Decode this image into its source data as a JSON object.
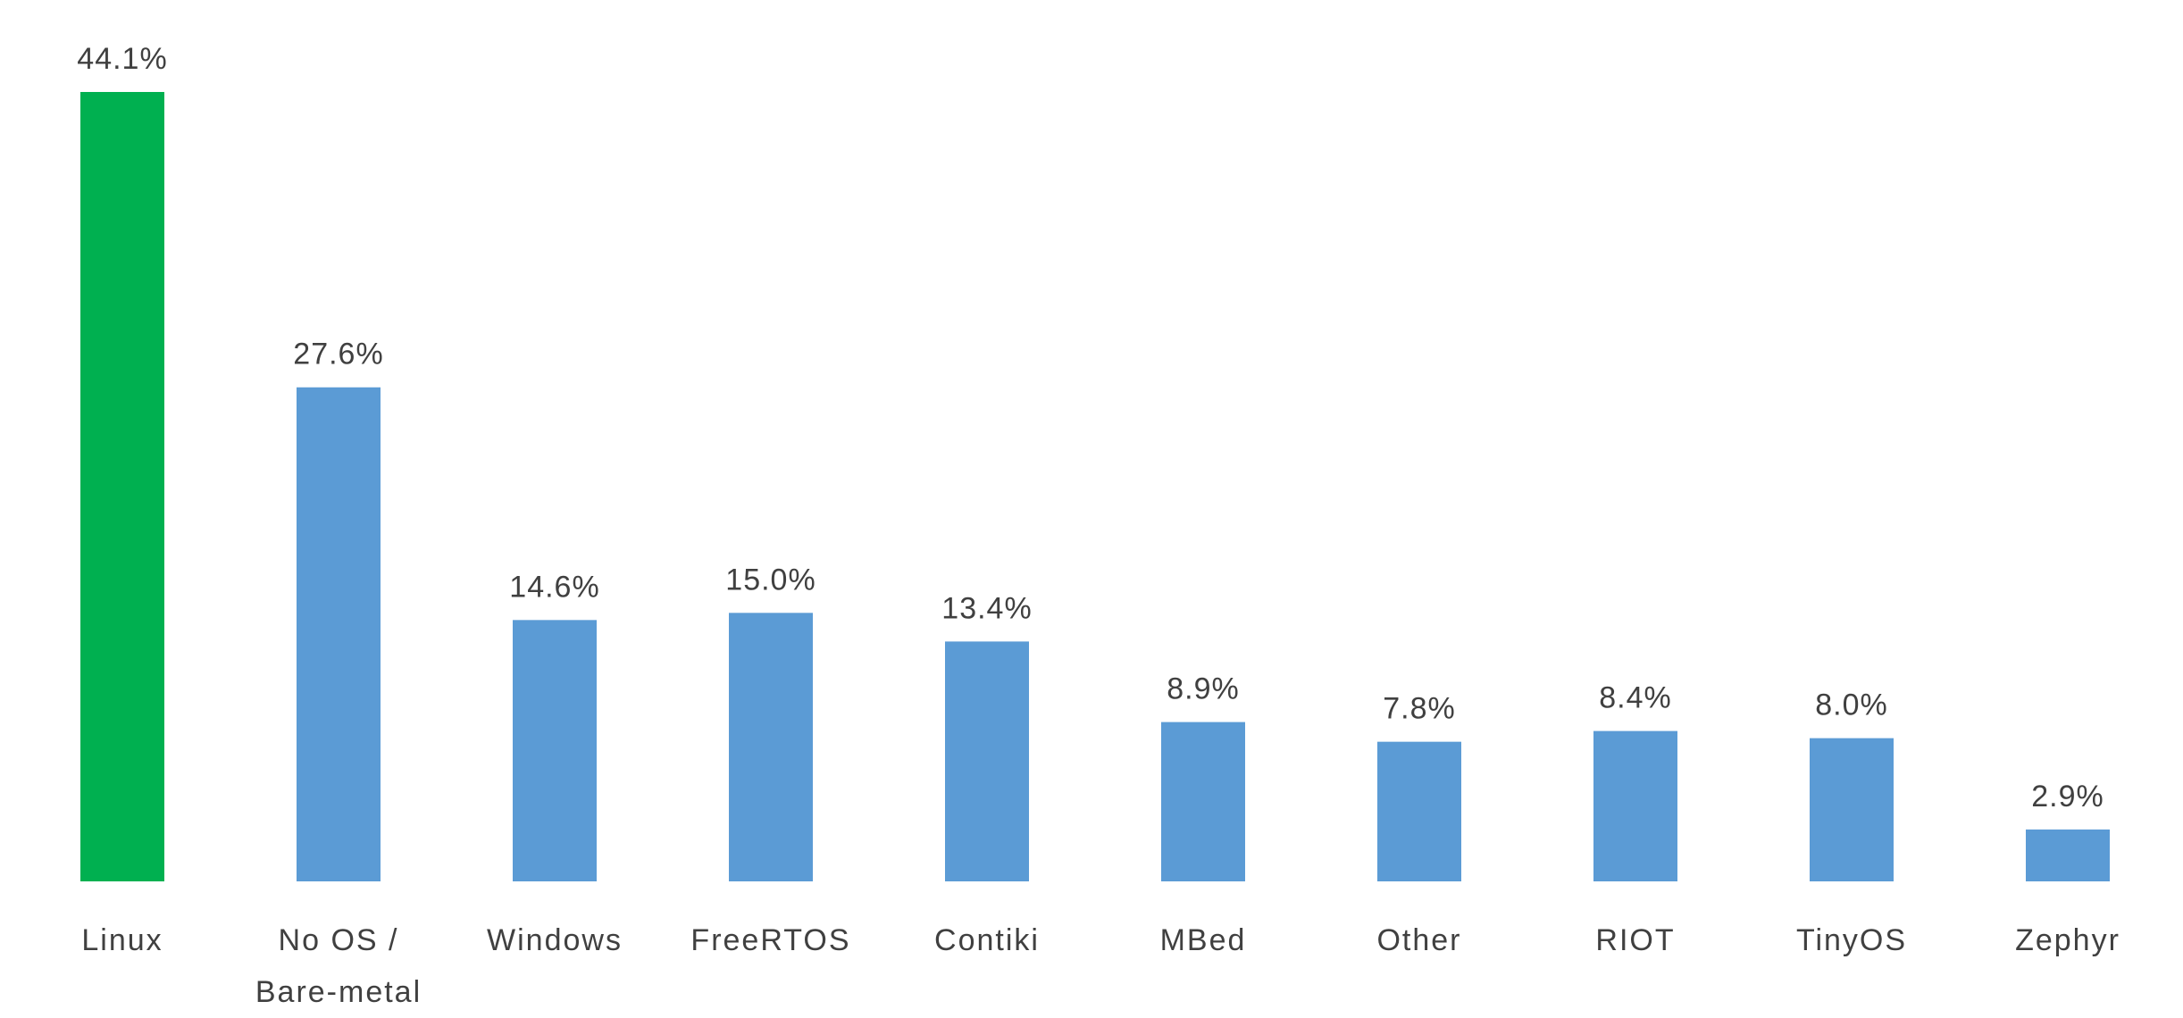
{
  "chart_data": {
    "type": "bar",
    "title": "",
    "xlabel": "",
    "ylabel": "",
    "categories": [
      [
        "Linux"
      ],
      [
        "No OS /",
        "Bare-metal"
      ],
      [
        "Windows"
      ],
      [
        "FreeRTOS"
      ],
      [
        "Contiki"
      ],
      [
        "MBed"
      ],
      [
        "Other"
      ],
      [
        "RIOT"
      ],
      [
        "TinyOS"
      ],
      [
        "Zephyr"
      ]
    ],
    "values": [
      44.1,
      27.6,
      14.6,
      15.0,
      13.4,
      8.9,
      7.8,
      8.4,
      8.0,
      2.9
    ],
    "value_labels": [
      "44.1%",
      "27.6%",
      "14.6%",
      "15.0%",
      "13.4%",
      "8.9%",
      "7.8%",
      "8.4%",
      "8.0%",
      "2.9%"
    ],
    "unit": "%",
    "ylim": [
      0,
      44.1
    ],
    "grid": false,
    "legend": "none",
    "colors": [
      "#00b050",
      "#5b9bd5",
      "#5b9bd5",
      "#5b9bd5",
      "#5b9bd5",
      "#5b9bd5",
      "#5b9bd5",
      "#5b9bd5",
      "#5b9bd5",
      "#5b9bd5"
    ]
  }
}
